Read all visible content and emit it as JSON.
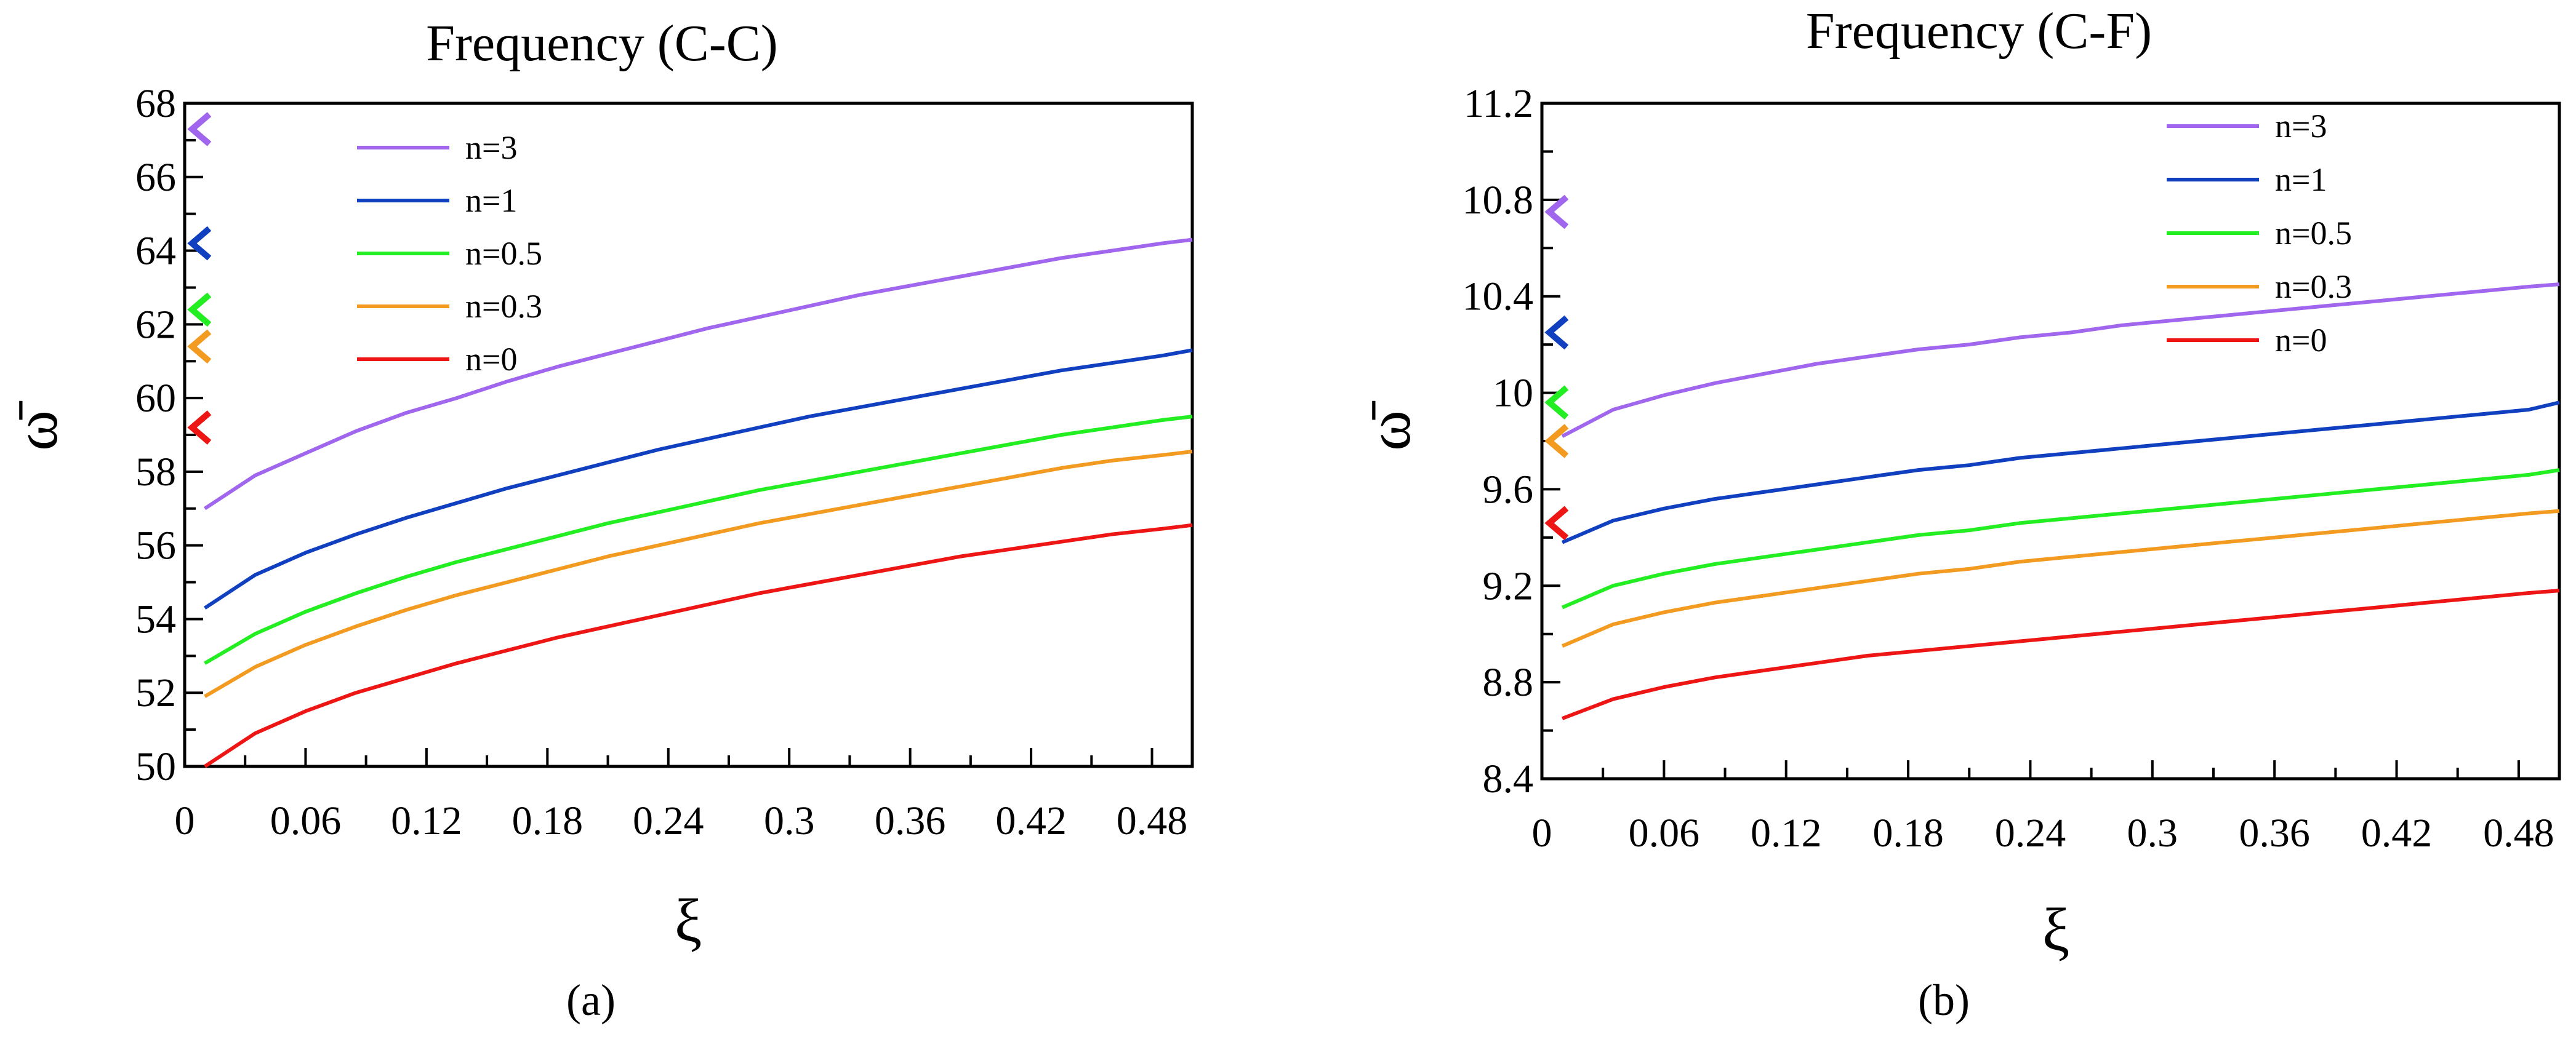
{
  "chart_data": [
    {
      "type": "line",
      "panel_label": "(a)",
      "title": "Frequency (C-C)",
      "xlabel": "ξ",
      "ylabel": "ω̄",
      "xlim": [
        0,
        0.5
      ],
      "ylim": [
        50,
        68
      ],
      "x_ticks": [
        "0",
        "0.06",
        "0.12",
        "0.18",
        "0.24",
        "0.3",
        "0.36",
        "0.42",
        "0.48"
      ],
      "y_ticks": [
        "50",
        "52",
        "54",
        "56",
        "58",
        "60",
        "62",
        "64",
        "66",
        "68"
      ],
      "x": [
        0.01,
        0.035,
        0.06,
        0.085,
        0.11,
        0.135,
        0.16,
        0.185,
        0.21,
        0.235,
        0.26,
        0.285,
        0.31,
        0.335,
        0.36,
        0.385,
        0.41,
        0.435,
        0.46,
        0.485,
        0.5
      ],
      "series": [
        {
          "name": "n=3",
          "color": "#a066ee",
          "values": [
            57.0,
            57.9,
            58.5,
            59.1,
            59.6,
            60.0,
            60.45,
            60.85,
            61.2,
            61.55,
            61.9,
            62.2,
            62.5,
            62.8,
            63.05,
            63.3,
            63.55,
            63.8,
            64.0,
            64.2,
            64.3
          ]
        },
        {
          "name": "n=1",
          "color": "#1040c0",
          "values": [
            54.3,
            55.2,
            55.8,
            56.3,
            56.75,
            57.15,
            57.55,
            57.9,
            58.25,
            58.6,
            58.9,
            59.2,
            59.5,
            59.75,
            60.0,
            60.25,
            60.5,
            60.75,
            60.95,
            61.15,
            61.3
          ]
        },
        {
          "name": "n=0.5",
          "color": "#22ee22",
          "values": [
            52.8,
            53.6,
            54.2,
            54.7,
            55.15,
            55.55,
            55.9,
            56.25,
            56.6,
            56.9,
            57.2,
            57.5,
            57.75,
            58.0,
            58.25,
            58.5,
            58.75,
            59.0,
            59.2,
            59.4,
            59.5
          ]
        },
        {
          "name": "n=0.3",
          "color": "#f39a20",
          "values": [
            51.9,
            52.7,
            53.3,
            53.8,
            54.25,
            54.65,
            55.0,
            55.35,
            55.7,
            56.0,
            56.3,
            56.6,
            56.85,
            57.1,
            57.35,
            57.6,
            57.85,
            58.1,
            58.3,
            58.45,
            58.55
          ]
        },
        {
          "name": "n=0",
          "color": "#ee1515",
          "values": [
            50.0,
            50.9,
            51.5,
            52.0,
            52.4,
            52.8,
            53.15,
            53.5,
            53.8,
            54.1,
            54.4,
            54.7,
            54.95,
            55.2,
            55.45,
            55.7,
            55.9,
            56.1,
            56.3,
            56.45,
            56.55
          ]
        }
      ],
      "markers": [
        {
          "name": "n=3",
          "color": "#a066ee",
          "value": 67.3
        },
        {
          "name": "n=1",
          "color": "#1040c0",
          "value": 64.2
        },
        {
          "name": "n=0.5",
          "color": "#22ee22",
          "value": 62.4
        },
        {
          "name": "n=0.3",
          "color": "#f39a20",
          "value": 61.4
        },
        {
          "name": "n=0",
          "color": "#ee1515",
          "value": 59.2
        }
      ],
      "legend_position": "top-left"
    },
    {
      "type": "line",
      "panel_label": "(b)",
      "title": "Frequency (C-F)",
      "xlabel": "ξ",
      "ylabel": "ω̄",
      "xlim": [
        0,
        0.5
      ],
      "ylim": [
        8.4,
        11.2
      ],
      "x_ticks": [
        "0",
        "0.06",
        "0.12",
        "0.18",
        "0.24",
        "0.3",
        "0.36",
        "0.42",
        "0.48"
      ],
      "y_ticks": [
        "8.4",
        "8.8",
        "9.2",
        "9.6",
        "10",
        "10.4",
        "10.8",
        "11.2"
      ],
      "x": [
        0.01,
        0.035,
        0.06,
        0.085,
        0.11,
        0.135,
        0.16,
        0.185,
        0.21,
        0.235,
        0.26,
        0.285,
        0.31,
        0.335,
        0.36,
        0.385,
        0.41,
        0.435,
        0.46,
        0.485,
        0.5
      ],
      "series": [
        {
          "name": "n=3",
          "color": "#a066ee",
          "values": [
            9.82,
            9.93,
            9.99,
            10.04,
            10.08,
            10.12,
            10.15,
            10.18,
            10.2,
            10.23,
            10.25,
            10.28,
            10.3,
            10.32,
            10.34,
            10.36,
            10.38,
            10.4,
            10.42,
            10.44,
            10.45
          ]
        },
        {
          "name": "n=1",
          "color": "#1040c0",
          "values": [
            9.38,
            9.47,
            9.52,
            9.56,
            9.59,
            9.62,
            9.65,
            9.68,
            9.7,
            9.73,
            9.75,
            9.77,
            9.79,
            9.81,
            9.83,
            9.85,
            9.87,
            9.89,
            9.91,
            9.93,
            9.96
          ]
        },
        {
          "name": "n=0.5",
          "color": "#22ee22",
          "values": [
            9.11,
            9.2,
            9.25,
            9.29,
            9.32,
            9.35,
            9.38,
            9.41,
            9.43,
            9.46,
            9.48,
            9.5,
            9.52,
            9.54,
            9.56,
            9.58,
            9.6,
            9.62,
            9.64,
            9.66,
            9.68
          ]
        },
        {
          "name": "n=0.3",
          "color": "#f39a20",
          "values": [
            8.95,
            9.04,
            9.09,
            9.13,
            9.16,
            9.19,
            9.22,
            9.25,
            9.27,
            9.3,
            9.32,
            9.34,
            9.36,
            9.38,
            9.4,
            9.42,
            9.44,
            9.46,
            9.48,
            9.5,
            9.51
          ]
        },
        {
          "name": "n=0",
          "color": "#ee1515",
          "values": [
            8.65,
            8.73,
            8.78,
            8.82,
            8.85,
            8.88,
            8.91,
            8.93,
            8.95,
            8.97,
            8.99,
            9.01,
            9.03,
            9.05,
            9.07,
            9.09,
            9.11,
            9.13,
            9.15,
            9.17,
            9.18
          ]
        }
      ],
      "markers": [
        {
          "name": "n=3",
          "color": "#a066ee",
          "value": 10.75
        },
        {
          "name": "n=1",
          "color": "#1040c0",
          "value": 10.25
        },
        {
          "name": "n=0.5",
          "color": "#22ee22",
          "value": 9.96
        },
        {
          "name": "n=0.3",
          "color": "#f39a20",
          "value": 9.8
        },
        {
          "name": "n=0",
          "color": "#ee1515",
          "value": 9.46
        }
      ],
      "legend_position": "top-center"
    }
  ]
}
